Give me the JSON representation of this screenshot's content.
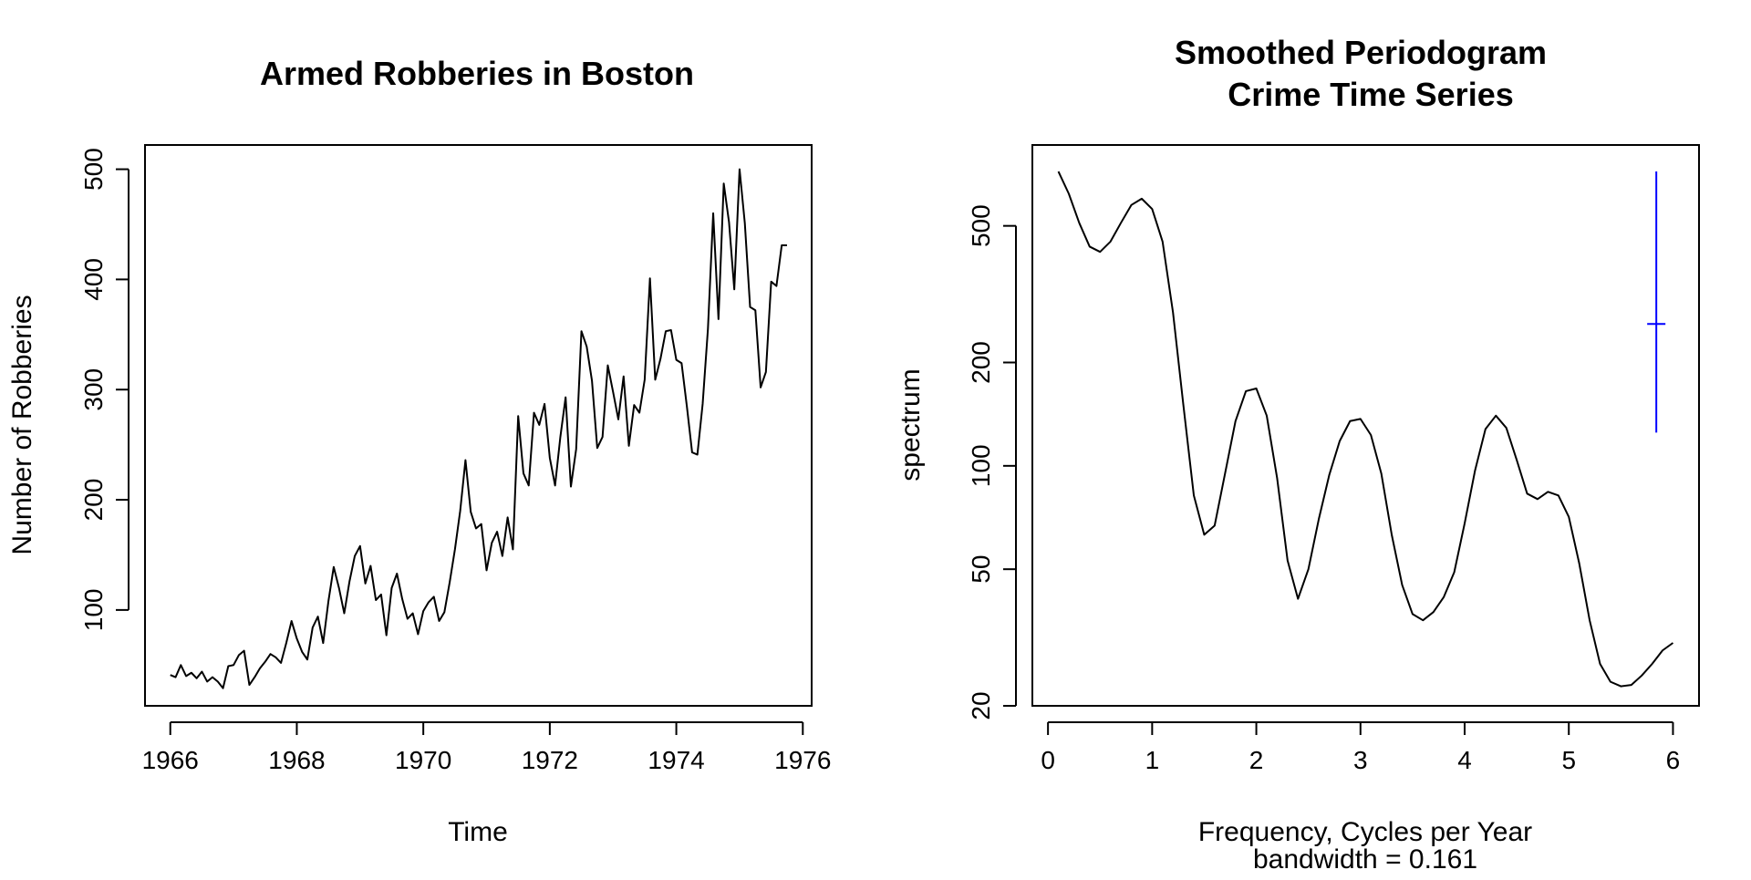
{
  "chart_data": [
    {
      "type": "line",
      "title": "Armed Robberies in Boston",
      "xlabel": "Time",
      "ylabel": "Number of Robberies",
      "xlim": [
        1965.6,
        1976.14
      ],
      "ylim": [
        13,
        522
      ],
      "x_ticks": [
        1966,
        1968,
        1970,
        1972,
        1974,
        1976
      ],
      "x_tick_labels": [
        "1966",
        "1968",
        "1970",
        "1972",
        "1974",
        "1976"
      ],
      "y_ticks": [
        100,
        200,
        300,
        400,
        500
      ],
      "y_tick_labels": [
        "100",
        "200",
        "300",
        "400",
        "500"
      ],
      "grid": false,
      "series": [
        {
          "color": "#000000",
          "start": 1966.0,
          "step": 0.08333333,
          "values": [
            41,
            39,
            50,
            40,
            43,
            38,
            44,
            35,
            39,
            35,
            29,
            49,
            50,
            59,
            63,
            32,
            39,
            47,
            53,
            60,
            57,
            52,
            70,
            90,
            74,
            62,
            55,
            84,
            94,
            70,
            108,
            139,
            120,
            97,
            126,
            149,
            158,
            124,
            140,
            109,
            114,
            77,
            120,
            133,
            110,
            92,
            97,
            78,
            99,
            107,
            112,
            90,
            98,
            125,
            155,
            190,
            236,
            189,
            174,
            178,
            136,
            161,
            171,
            149,
            184,
            155,
            276,
            224,
            213,
            279,
            268,
            287,
            238,
            213,
            257,
            293,
            212,
            246,
            353,
            339,
            308,
            247,
            257,
            322,
            298,
            273,
            312,
            249,
            286,
            279,
            309,
            401,
            309,
            328,
            353,
            354,
            327,
            324,
            285,
            243,
            241,
            287,
            355,
            460,
            364,
            487,
            452,
            391,
            500,
            451,
            375,
            372,
            302,
            316,
            398,
            394,
            431,
            431
          ]
        }
      ]
    },
    {
      "type": "line",
      "title": "Smoothed Periodogram",
      "subtitle": "Crime Time Series",
      "xlabel": "Frequency, Cycles per Year",
      "xlabel_line2": "bandwidth = 0.161",
      "ylabel": "spectrum",
      "y_scale": "log",
      "xlim": [
        -0.15,
        6.25
      ],
      "ylim": [
        20,
        860
      ],
      "x_ticks": [
        0,
        1,
        2,
        3,
        4,
        5,
        6
      ],
      "x_tick_labels": [
        "0",
        "1",
        "2",
        "3",
        "4",
        "5",
        "6"
      ],
      "y_ticks": [
        20,
        50,
        100,
        200,
        500
      ],
      "y_tick_labels": [
        "20",
        "50",
        "100",
        "200",
        "500"
      ],
      "grid": false,
      "series": [
        {
          "color": "#000000",
          "x": [
            0.1,
            0.2,
            0.3,
            0.4,
            0.5,
            0.6,
            0.7,
            0.8,
            0.9,
            1.0,
            1.1,
            1.2,
            1.3,
            1.4,
            1.5,
            1.6,
            1.7,
            1.8,
            1.9,
            2.0,
            2.1,
            2.2,
            2.3,
            2.4,
            2.5,
            2.6,
            2.7,
            2.8,
            2.9,
            3.0,
            3.1,
            3.2,
            3.3,
            3.4,
            3.5,
            3.6,
            3.7,
            3.8,
            3.9,
            4.0,
            4.1,
            4.2,
            4.3,
            4.4,
            4.5,
            4.6,
            4.7,
            4.8,
            4.9,
            5.0,
            5.1,
            5.2,
            5.3,
            5.4,
            5.5,
            5.6,
            5.7,
            5.8,
            5.9,
            6.0
          ],
          "values": [
            720,
            620,
            510,
            435,
            420,
            450,
            510,
            575,
            600,
            560,
            450,
            280,
            150,
            82,
            63,
            67,
            95,
            135,
            165,
            168,
            140,
            92,
            53,
            41,
            50,
            70,
            94,
            118,
            135,
            137,
            123,
            95,
            63,
            45,
            37,
            35.5,
            37.5,
            41.5,
            49,
            68,
            97,
            128,
            140,
            129,
            104,
            83,
            80,
            84,
            82,
            71,
            52,
            35.5,
            26.5,
            23.5,
            22.8,
            23,
            24.5,
            26.5,
            29,
            30.5
          ]
        }
      ],
      "ci_bar": {
        "x": 5.84,
        "center": 259,
        "lower": 125,
        "upper": 720,
        "color": "#0000ff"
      }
    }
  ]
}
